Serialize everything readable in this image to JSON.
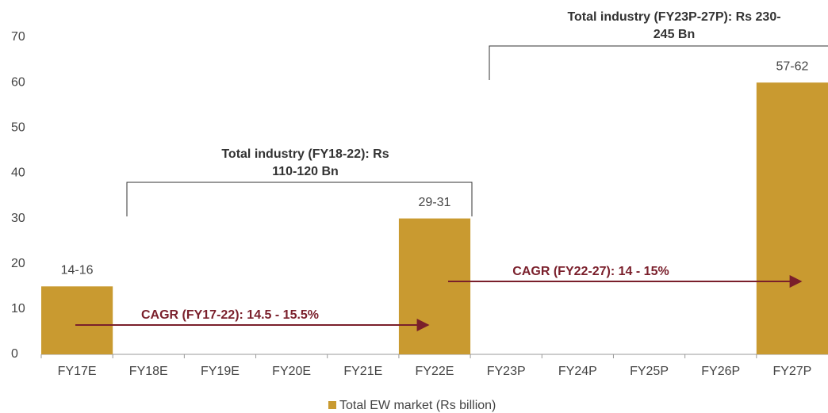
{
  "chart_data": {
    "type": "bar",
    "categories": [
      "FY17E",
      "FY18E",
      "FY19E",
      "FY20E",
      "FY21E",
      "FY22E",
      "FY23P",
      "FY24P",
      "FY25P",
      "FY26P",
      "FY27P"
    ],
    "series": [
      {
        "name": "Total EW market (Rs billion)",
        "color": "#c99a30",
        "values": [
          15,
          null,
          null,
          null,
          null,
          30,
          null,
          null,
          null,
          null,
          60
        ],
        "value_labels": [
          "14-16",
          null,
          null,
          null,
          null,
          "29-31",
          null,
          null,
          null,
          null,
          "57-62"
        ]
      }
    ],
    "ylim": [
      0,
      70
    ],
    "yticks": [
      0,
      10,
      20,
      30,
      40,
      50,
      60,
      70
    ],
    "grid": false,
    "legend": "bottom",
    "annotations": [
      {
        "text": [
          "Total industry (FY18-22): Rs",
          "110-120 Bn"
        ]
      },
      {
        "text": [
          "Total industry (FY23P-27P): Rs 230-",
          "245 Bn"
        ]
      },
      {
        "text": [
          "CAGR (FY17-22): 14.5 - 15.5%"
        ]
      },
      {
        "text": [
          "CAGR (FY22-27): 14 - 15%"
        ]
      }
    ]
  }
}
